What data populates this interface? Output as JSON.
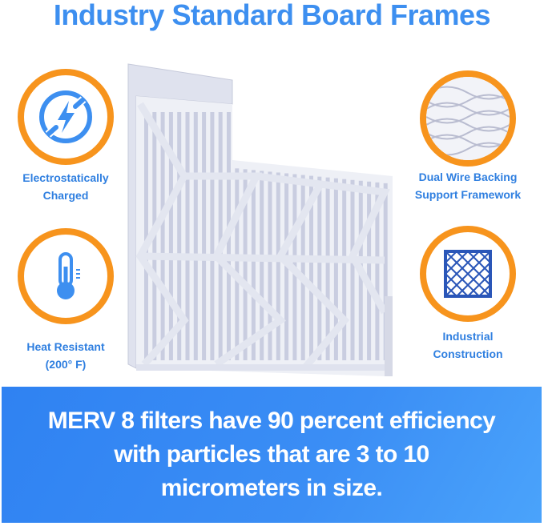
{
  "title": "Industry Standard Board Frames",
  "features": [
    {
      "icon": "electrostatic-icon",
      "label_line1": "Electrostatically",
      "label_line2": "Charged"
    },
    {
      "icon": "thermometer-icon",
      "label_line1": "Heat Resistant",
      "label_line2": "(200° F)"
    },
    {
      "icon": "wire-mesh-icon",
      "label_line1": "Dual Wire Backing",
      "label_line2": "Support Framework"
    },
    {
      "icon": "grid-construction-icon",
      "label_line1": "Industrial",
      "label_line2": "Construction"
    }
  ],
  "banner": {
    "text": "MERV 8 filters have 90 percent efficiency with particles that are 3 to 10 micrometers in size."
  },
  "colors": {
    "accent_blue": "#3d8ff0",
    "ring_orange": "#f7941d",
    "banner_blue": "#2f82f2"
  }
}
